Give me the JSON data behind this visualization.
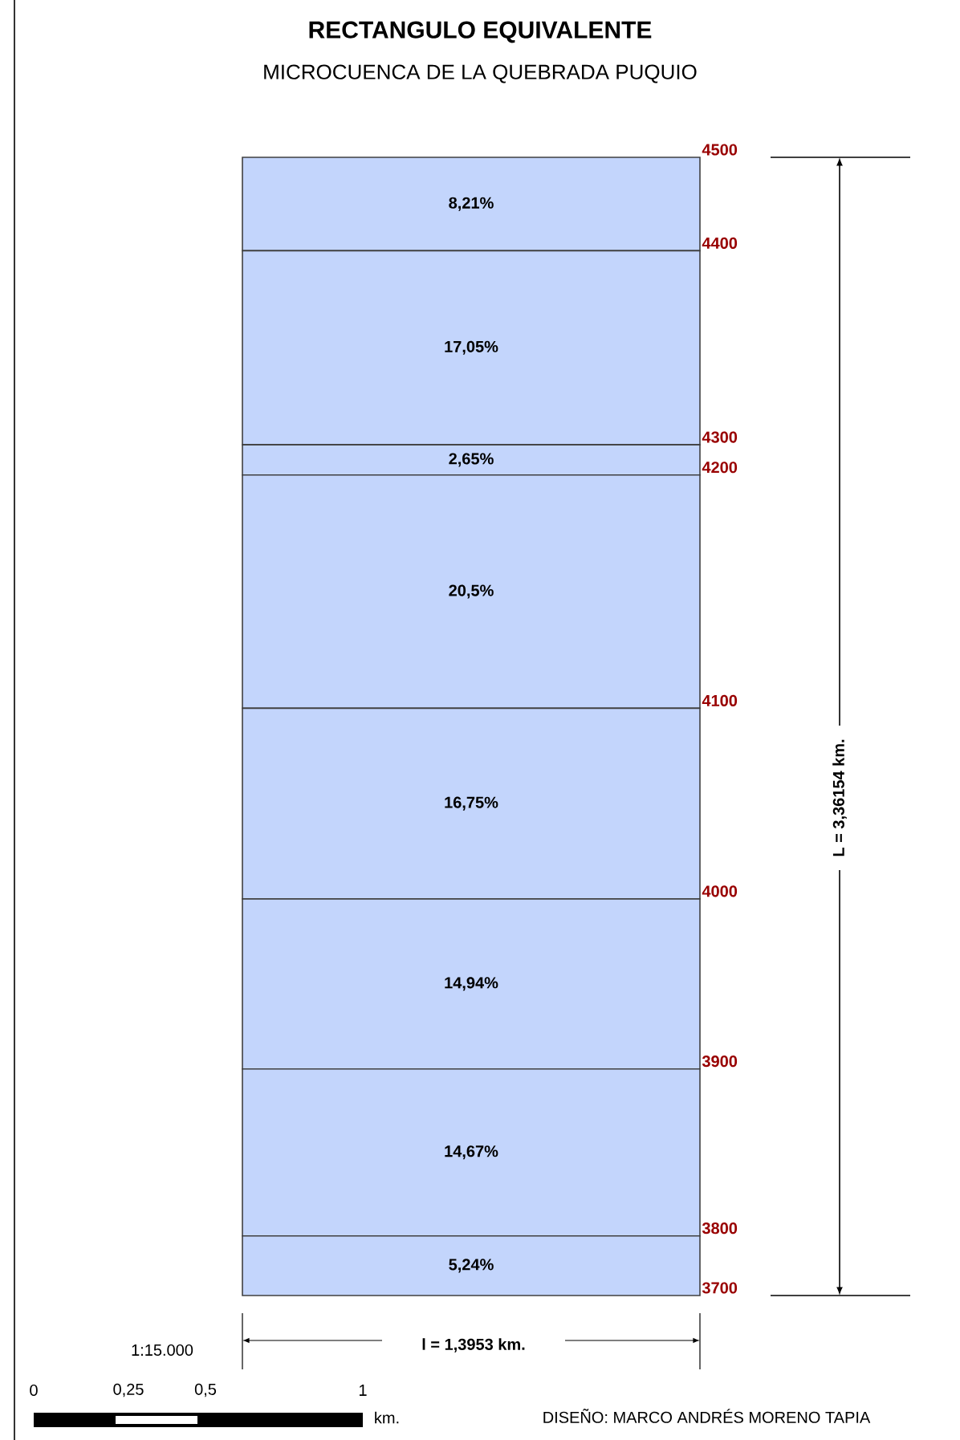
{
  "chart_data": {
    "type": "bar",
    "stacked": true,
    "title": "RECTANGULO EQUIVALENTE",
    "subtitle": "MICROCUENCA DE LA QUEBRADA PUQUIO",
    "categories": [
      null
    ],
    "series": [
      {
        "color": "#c3d5fc",
        "values": [
          5.24
        ],
        "value_labels": [
          "5,24%"
        ]
      },
      {
        "color": "#c3d5fc",
        "values": [
          14.67
        ],
        "value_labels": [
          "14,67%"
        ]
      },
      {
        "color": "#c3d5fc",
        "values": [
          14.94
        ],
        "value_labels": [
          "14,94%"
        ]
      },
      {
        "color": "#c3d5fc",
        "values": [
          16.75
        ],
        "value_labels": [
          "16,75%"
        ]
      },
      {
        "color": "#c3d5fc",
        "values": [
          20.5
        ],
        "value_labels": [
          "20,5%"
        ]
      },
      {
        "color": "#c3d5fc",
        "values": [
          2.65
        ],
        "value_labels": [
          "2,65%"
        ]
      },
      {
        "color": "#c3d5fc",
        "values": [
          17.05
        ],
        "value_labels": [
          "17,05%"
        ]
      },
      {
        "color": "#c3d5fc",
        "values": [
          8.21
        ],
        "value_labels": [
          "8,21%"
        ]
      }
    ],
    "annotations": [
      "L = 3,36154 km.",
      "l = 1,3953 km.",
      "1:15.000",
      "0",
      "0,25",
      "0,5",
      "1",
      "km.",
      "DISEÑO: MARCO ANDRÉS MORENO TAPIA",
      "3700",
      "3800",
      "3900",
      "4000",
      "4100",
      "4200",
      "4300",
      "4400",
      "4500"
    ]
  }
}
